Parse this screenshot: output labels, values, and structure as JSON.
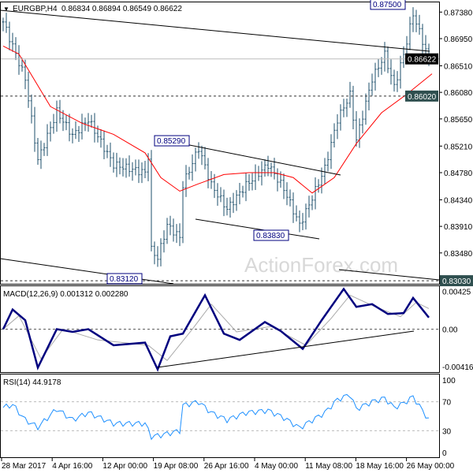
{
  "chart_data": {
    "type": "candlestick",
    "title": "EURGBP,H4",
    "ohlc_header": [
      "0.86834",
      "0.86894",
      "0.86549",
      "0.86622"
    ],
    "price_ticks": [
      "0.87380",
      "0.86950",
      "0.86510",
      "0.86080",
      "0.85650",
      "0.85210",
      "0.84780",
      "0.84340",
      "0.83910",
      "0.83480"
    ],
    "price_range": [
      0.8298,
      0.8755
    ],
    "current_price": "0.86622",
    "levels": [
      {
        "label": "0.86020",
        "value": 0.8602
      },
      {
        "label": "0.83030",
        "value": 0.8303
      }
    ],
    "annotations": [
      {
        "label": "0.87500",
        "bar": 128,
        "value": 0.875
      },
      {
        "label": "0.85290",
        "bar": 61,
        "value": 0.8529
      },
      {
        "label": "0.83830",
        "bar": 93,
        "value": 0.8383
      },
      {
        "label": "0.83120",
        "bar": 46,
        "value": 0.8312
      }
    ],
    "price_path": [
      [
        0,
        0.8722
      ],
      [
        3,
        0.8683
      ],
      [
        7,
        0.863
      ],
      [
        11,
        0.8498
      ],
      [
        17,
        0.8577
      ],
      [
        22,
        0.8538
      ],
      [
        27,
        0.8564
      ],
      [
        35,
        0.8491
      ],
      [
        45,
        0.8478
      ],
      [
        46,
        0.8505
      ],
      [
        47,
        0.8353
      ],
      [
        49,
        0.834
      ],
      [
        52,
        0.8393
      ],
      [
        56,
        0.8373
      ],
      [
        57,
        0.8458
      ],
      [
        62,
        0.8518
      ],
      [
        66,
        0.8458
      ],
      [
        71,
        0.8419
      ],
      [
        77,
        0.8458
      ],
      [
        84,
        0.8491
      ],
      [
        89,
        0.8452
      ],
      [
        94,
        0.8393
      ],
      [
        97,
        0.8426
      ],
      [
        102,
        0.8485
      ],
      [
        106,
        0.8564
      ],
      [
        110,
        0.8604
      ],
      [
        112,
        0.8531
      ],
      [
        117,
        0.863
      ],
      [
        121,
        0.8669
      ],
      [
        124,
        0.8617
      ],
      [
        127,
        0.8669
      ],
      [
        130,
        0.8735
      ],
      [
        135,
        0.8662
      ]
    ],
    "ma_path": [
      [
        0,
        0.8683
      ],
      [
        5,
        0.867
      ],
      [
        15,
        0.8585
      ],
      [
        25,
        0.8558
      ],
      [
        35,
        0.854
      ],
      [
        45,
        0.851
      ],
      [
        50,
        0.847
      ],
      [
        56,
        0.8448
      ],
      [
        62,
        0.846
      ],
      [
        70,
        0.8475
      ],
      [
        78,
        0.8478
      ],
      [
        86,
        0.8478
      ],
      [
        92,
        0.847
      ],
      [
        98,
        0.8445
      ],
      [
        105,
        0.847
      ],
      [
        112,
        0.8525
      ],
      [
        120,
        0.8575
      ],
      [
        128,
        0.8605
      ],
      [
        136,
        0.8638
      ]
    ],
    "macd": {
      "label": "MACD(12,26,9) 0.001312 0.002280",
      "ticks": [
        "0.00425",
        "0.00",
        "-0.004167"
      ],
      "range": [
        -0.0048,
        0.0049
      ],
      "main": [
        [
          0,
          0.0
        ],
        [
          3,
          0.0022
        ],
        [
          7,
          0.001
        ],
        [
          11,
          -0.0043
        ],
        [
          17,
          0.0
        ],
        [
          22,
          -0.0003
        ],
        [
          27,
          0.0
        ],
        [
          35,
          -0.0018
        ],
        [
          45,
          -0.0015
        ],
        [
          49,
          -0.0045
        ],
        [
          53,
          -0.0008
        ],
        [
          57,
          -0.0005
        ],
        [
          64,
          0.0038
        ],
        [
          70,
          -0.0005
        ],
        [
          75,
          -0.0012
        ],
        [
          83,
          0.0008
        ],
        [
          88,
          -0.0002
        ],
        [
          95,
          -0.0022
        ],
        [
          101,
          0.001
        ],
        [
          108,
          0.0045
        ],
        [
          112,
          0.0025
        ],
        [
          117,
          0.0028
        ],
        [
          122,
          0.0017
        ],
        [
          127,
          0.0018
        ],
        [
          130,
          0.0035
        ],
        [
          135,
          0.0013
        ]
      ],
      "signal": [
        [
          0,
          0.0
        ],
        [
          5,
          0.0015
        ],
        [
          12,
          -0.0033
        ],
        [
          19,
          0.0
        ],
        [
          30,
          -0.0012
        ],
        [
          46,
          -0.0018
        ],
        [
          52,
          -0.0035
        ],
        [
          60,
          0.0
        ],
        [
          66,
          0.0028
        ],
        [
          74,
          -0.0003
        ],
        [
          85,
          0.0003
        ],
        [
          96,
          -0.0018
        ],
        [
          104,
          0.0012
        ],
        [
          110,
          0.0038
        ],
        [
          118,
          0.0025
        ],
        [
          126,
          0.0014
        ],
        [
          131,
          0.003
        ],
        [
          135,
          0.0023
        ]
      ]
    },
    "rsi": {
      "label": "RSI(14) 44.9178",
      "ticks": [
        "100",
        "70",
        "30",
        "0"
      ],
      "levels": [
        70,
        30
      ],
      "path": [
        [
          0,
          62
        ],
        [
          3,
          66
        ],
        [
          7,
          45
        ],
        [
          11,
          35
        ],
        [
          17,
          60
        ],
        [
          22,
          45
        ],
        [
          27,
          55
        ],
        [
          35,
          40
        ],
        [
          45,
          40
        ],
        [
          47,
          22
        ],
        [
          50,
          24
        ],
        [
          56,
          30
        ],
        [
          57,
          65
        ],
        [
          62,
          70
        ],
        [
          66,
          55
        ],
        [
          71,
          45
        ],
        [
          77,
          55
        ],
        [
          84,
          58
        ],
        [
          89,
          48
        ],
        [
          94,
          34
        ],
        [
          97,
          42
        ],
        [
          102,
          55
        ],
        [
          106,
          73
        ],
        [
          110,
          80
        ],
        [
          112,
          60
        ],
        [
          117,
          70
        ],
        [
          121,
          75
        ],
        [
          124,
          62
        ],
        [
          127,
          68
        ],
        [
          130,
          77
        ],
        [
          135,
          45
        ]
      ]
    },
    "x_labels": [
      "28 Mar 2017",
      "4 Apr 16:00",
      "12 Apr 00:00",
      "19 Apr 08:00",
      "26 Apr 16:00",
      "4 May 00:00",
      "11 May 08:00",
      "18 May 16:00",
      "26 May 00:00"
    ],
    "watermark": "ActionForex.com",
    "colors": {
      "bars": "#1e4f6b",
      "ma": "#ff0000",
      "macd": "#00007f",
      "signal": "#aaaaaa",
      "rsi": "#1e90ff",
      "label_box": "#2f4f4f"
    }
  }
}
